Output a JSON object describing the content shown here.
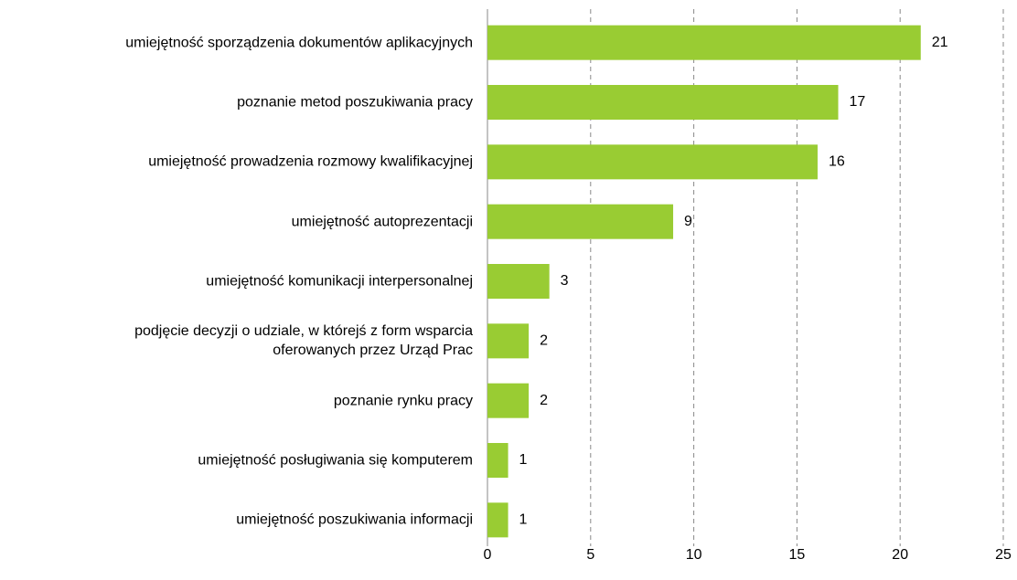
{
  "chart_data": {
    "type": "bar",
    "orientation": "horizontal",
    "categories": [
      "umiejętność sporządzenia dokumentów aplikacyjnych",
      "poznanie metod poszukiwania pracy",
      "umiejętność prowadzenia rozmowy kwalifikacyjnej",
      "umiejętność autoprezentacji",
      "umiejętność komunikacji interpersonalnej",
      "podjęcie decyzji o udziale, w którejś z form wsparcia\noferowanych przez Urząd Prac",
      "poznanie rynku pracy",
      "umiejętność posługiwania się komputerem",
      "umiejętność poszukiwania informacji"
    ],
    "values": [
      21,
      17,
      16,
      9,
      3,
      2,
      2,
      1,
      1
    ],
    "color": "#99cc33",
    "xlim": [
      0,
      25
    ],
    "xticks": [
      0,
      5,
      10,
      15,
      20,
      25
    ],
    "grid": true
  }
}
